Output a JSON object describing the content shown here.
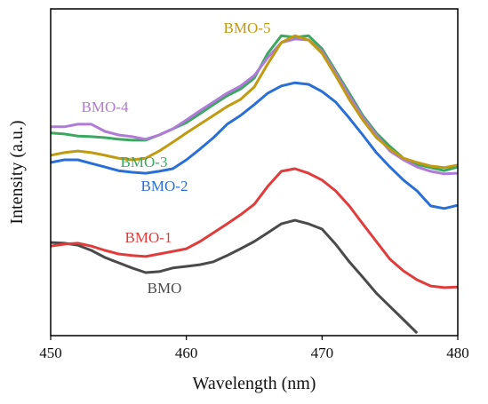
{
  "chart_data": {
    "type": "line",
    "x_label": "Wavelength (nm)",
    "y_label": "Intensity (a.u.)",
    "x": [
      450,
      451,
      452,
      453,
      454,
      455,
      456,
      457,
      458,
      459,
      460,
      461,
      462,
      463,
      464,
      465,
      466,
      467,
      468,
      469,
      470,
      471,
      472,
      473,
      474,
      475,
      476,
      477,
      478,
      479,
      480
    ],
    "xlim": [
      450,
      480
    ],
    "xticks": [
      450,
      460,
      470,
      480
    ],
    "ylim": [
      0,
      100
    ],
    "series": [
      {
        "name": "BMO",
        "color": "#4a4a4a",
        "values": [
          28.5,
          28.3,
          27.7,
          26.1,
          23.9,
          22.3,
          20.7,
          19.3,
          19.6,
          20.7,
          21.2,
          21.7,
          22.6,
          24.5,
          26.6,
          28.8,
          31.5,
          34.2,
          35.3,
          34.2,
          32.6,
          28.0,
          22.6,
          17.9,
          13.0,
          8.9,
          4.9,
          0.8,
          null,
          null,
          null
        ]
      },
      {
        "name": "BMO-1",
        "color": "#e03c3c",
        "values": [
          27.4,
          28.0,
          28.3,
          27.4,
          26.1,
          25.0,
          24.5,
          24.2,
          25.0,
          25.8,
          26.6,
          28.8,
          31.5,
          34.2,
          37.0,
          40.2,
          45.7,
          50.3,
          51.1,
          49.7,
          47.6,
          44.3,
          39.7,
          34.2,
          28.8,
          23.4,
          19.8,
          17.1,
          15.2,
          14.7,
          14.9
        ]
      },
      {
        "name": "BMO-2",
        "color": "#2a6fd6",
        "values": [
          53.0,
          53.8,
          53.8,
          52.7,
          51.6,
          50.5,
          50.0,
          49.7,
          50.3,
          51.1,
          53.8,
          57.1,
          60.6,
          64.7,
          67.4,
          70.7,
          74.2,
          76.4,
          77.4,
          76.9,
          74.7,
          71.5,
          66.6,
          61.4,
          56.0,
          51.6,
          47.6,
          44.3,
          39.7,
          38.9,
          39.9
        ]
      },
      {
        "name": "BMO-3",
        "color": "#3aa860",
        "values": [
          62.0,
          61.7,
          61.1,
          60.9,
          60.6,
          60.1,
          59.8,
          59.8,
          61.4,
          63.3,
          65.2,
          67.9,
          70.7,
          73.4,
          75.5,
          78.8,
          86.4,
          91.8,
          91.3,
          91.8,
          87.8,
          81.0,
          74.2,
          67.4,
          62.0,
          57.9,
          54.3,
          52.4,
          51.4,
          50.5,
          51.6
        ]
      },
      {
        "name": "BMO-4",
        "color": "#b07ad8",
        "values": [
          63.9,
          63.9,
          64.7,
          64.7,
          62.5,
          61.4,
          60.9,
          60.1,
          61.4,
          63.3,
          66.0,
          68.8,
          71.5,
          74.2,
          76.4,
          79.6,
          85.1,
          89.7,
          90.8,
          90.5,
          87.0,
          80.4,
          73.4,
          66.8,
          61.4,
          56.5,
          53.8,
          51.6,
          50.3,
          49.5,
          49.7
        ]
      },
      {
        "name": "BMO-5",
        "color": "#c09a10",
        "values": [
          55.2,
          56.0,
          56.5,
          56.0,
          55.2,
          54.3,
          53.8,
          54.3,
          56.5,
          59.2,
          62.0,
          64.7,
          67.4,
          70.1,
          72.3,
          76.1,
          83.2,
          89.7,
          91.8,
          90.5,
          86.4,
          79.6,
          72.3,
          66.0,
          60.6,
          57.1,
          54.3,
          53.0,
          51.9,
          51.4,
          52.2
        ]
      }
    ]
  }
}
